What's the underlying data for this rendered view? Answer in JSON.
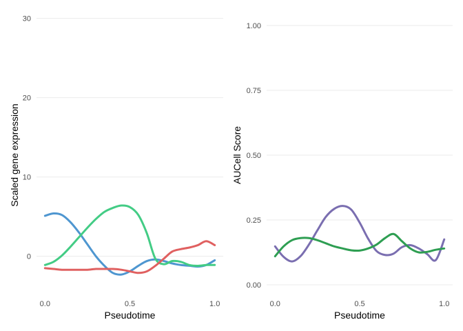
{
  "chart_data": [
    {
      "type": "line",
      "title": "",
      "xlabel": "Pseudotime",
      "ylabel": "Scaled gene expression",
      "xlim": [
        -0.05,
        1.05
      ],
      "ylim": [
        -4.9,
        30.4
      ],
      "xticks": [
        0.0,
        0.5,
        1.0
      ],
      "xtick_labels": [
        "0.0",
        "0.5",
        "1.0"
      ],
      "yticks": [
        0,
        10,
        20,
        30
      ],
      "ytick_labels": [
        "0",
        "10",
        "20",
        "30"
      ],
      "grid": true,
      "legend": "none",
      "series": [
        {
          "color": "#4e96d0",
          "x": [
            0.0,
            0.05,
            0.1,
            0.15,
            0.2,
            0.25,
            0.3,
            0.35,
            0.4,
            0.45,
            0.5,
            0.55,
            0.6,
            0.65,
            0.7,
            0.75,
            0.8,
            0.85,
            0.9,
            0.95,
            1.0
          ],
          "y": [
            5.1,
            5.4,
            5.2,
            4.3,
            3.0,
            1.5,
            0.0,
            -1.2,
            -2.1,
            -2.3,
            -1.9,
            -1.2,
            -0.6,
            -0.4,
            -0.6,
            -0.9,
            -1.1,
            -1.2,
            -1.3,
            -1.1,
            -0.5
          ]
        },
        {
          "color": "#43cc85",
          "x": [
            0.0,
            0.05,
            0.1,
            0.15,
            0.2,
            0.25,
            0.3,
            0.35,
            0.4,
            0.45,
            0.5,
            0.55,
            0.6,
            0.65,
            0.7,
            0.75,
            0.8,
            0.85,
            0.9,
            0.95,
            1.0
          ],
          "y": [
            -1.1,
            -0.7,
            0.1,
            1.2,
            2.4,
            3.6,
            4.7,
            5.6,
            6.1,
            6.4,
            6.2,
            5.2,
            2.9,
            -0.3,
            -1.0,
            -0.6,
            -0.7,
            -1.1,
            -1.2,
            -1.1,
            -1.1
          ]
        },
        {
          "color": "#e06060",
          "x": [
            0.0,
            0.05,
            0.1,
            0.15,
            0.2,
            0.25,
            0.3,
            0.35,
            0.4,
            0.45,
            0.5,
            0.55,
            0.6,
            0.65,
            0.7,
            0.75,
            0.8,
            0.85,
            0.9,
            0.95,
            1.0
          ],
          "y": [
            -1.5,
            -1.6,
            -1.7,
            -1.7,
            -1.7,
            -1.7,
            -1.6,
            -1.6,
            -1.6,
            -1.7,
            -1.9,
            -2.1,
            -1.9,
            -1.2,
            -0.3,
            0.6,
            0.9,
            1.1,
            1.4,
            1.9,
            1.4
          ]
        }
      ]
    },
    {
      "type": "line",
      "title": "",
      "xlabel": "Pseudotime",
      "ylabel": "AUCell Score",
      "xlim": [
        -0.05,
        1.05
      ],
      "ylim": [
        -0.04,
        1.04
      ],
      "xticks": [
        0.0,
        0.5,
        1.0
      ],
      "xtick_labels": [
        "0.0",
        "0.5",
        "1.0"
      ],
      "yticks": [
        0.0,
        0.25,
        0.5,
        0.75,
        1.0
      ],
      "ytick_labels": [
        "0.00",
        "0.25",
        "0.50",
        "0.75",
        "1.00"
      ],
      "grid": true,
      "legend": "none",
      "series": [
        {
          "color": "#7a6eb0",
          "x": [
            0.0,
            0.05,
            0.1,
            0.15,
            0.2,
            0.25,
            0.3,
            0.35,
            0.4,
            0.45,
            0.5,
            0.55,
            0.6,
            0.65,
            0.7,
            0.75,
            0.8,
            0.85,
            0.9,
            0.95,
            1.0
          ],
          "y": [
            0.148,
            0.108,
            0.09,
            0.11,
            0.155,
            0.21,
            0.262,
            0.293,
            0.304,
            0.29,
            0.24,
            0.178,
            0.13,
            0.115,
            0.12,
            0.145,
            0.153,
            0.14,
            0.118,
            0.095,
            0.175
          ]
        },
        {
          "color": "#2e9e52",
          "x": [
            0.0,
            0.05,
            0.1,
            0.15,
            0.2,
            0.25,
            0.3,
            0.35,
            0.4,
            0.45,
            0.5,
            0.55,
            0.6,
            0.65,
            0.7,
            0.75,
            0.8,
            0.85,
            0.9,
            0.95,
            1.0
          ],
          "y": [
            0.11,
            0.148,
            0.172,
            0.18,
            0.18,
            0.172,
            0.16,
            0.148,
            0.14,
            0.133,
            0.132,
            0.14,
            0.155,
            0.18,
            0.196,
            0.168,
            0.14,
            0.125,
            0.127,
            0.135,
            0.14
          ]
        }
      ]
    }
  ]
}
